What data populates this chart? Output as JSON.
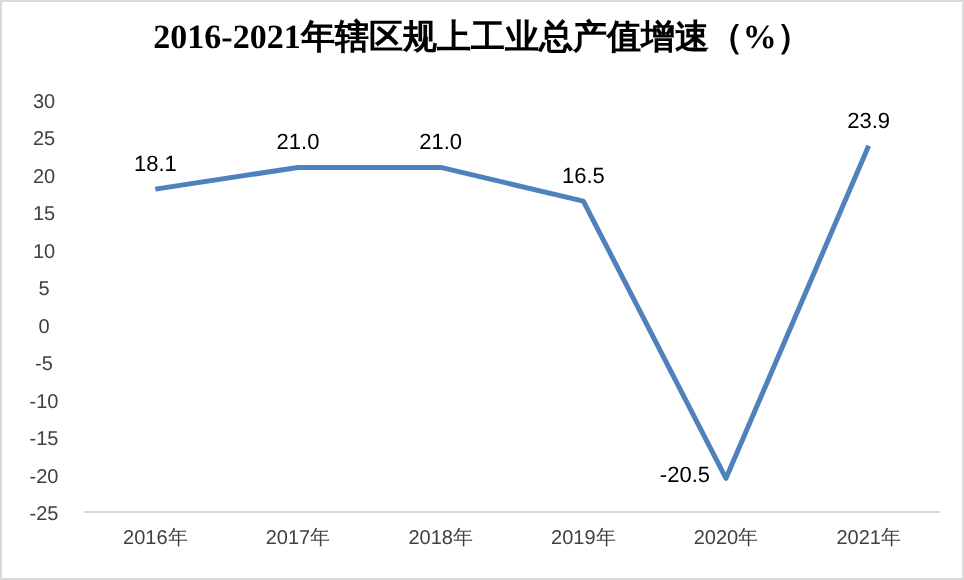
{
  "chart_data": {
    "type": "line",
    "title": "2016-2021年辖区规上工业总产值增速（%）",
    "categories": [
      "2016年",
      "2017年",
      "2018年",
      "2019年",
      "2020年",
      "2021年"
    ],
    "series": [
      {
        "color": "#4f81bd",
        "values": [
          18.1,
          21.0,
          21.0,
          16.5,
          -20.5,
          23.9
        ],
        "value_labels": [
          "18.1",
          "21.0",
          "21.0",
          "16.5",
          "-20.5",
          "23.9"
        ]
      }
    ],
    "ylim": [
      -25,
      30
    ],
    "yticks": [
      -25,
      -20,
      -15,
      -10,
      -5,
      0,
      5,
      10,
      15,
      20,
      25,
      30
    ],
    "grid": false,
    "marker": "none",
    "line_style": "solid"
  }
}
